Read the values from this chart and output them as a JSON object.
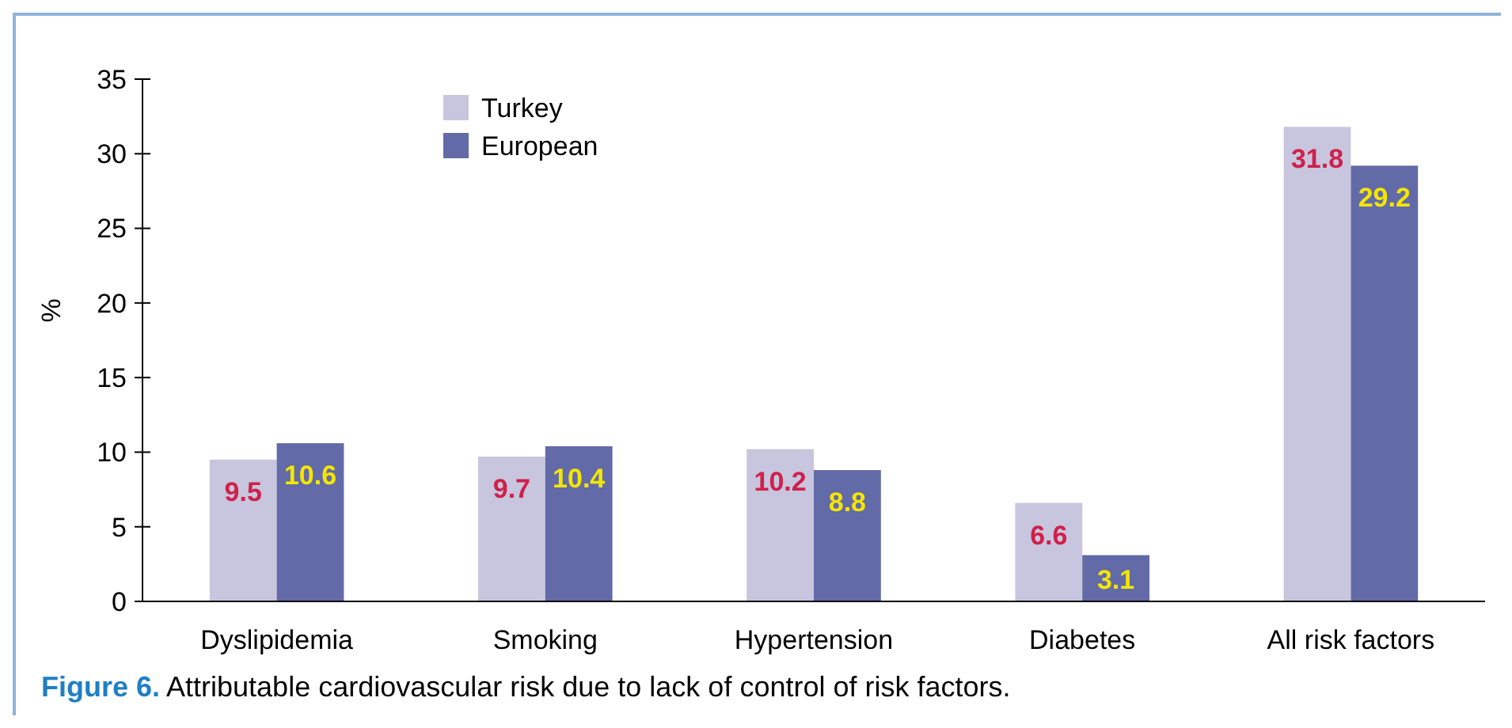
{
  "chart_data": {
    "type": "bar",
    "categories": [
      "Dyslipidemia",
      "Smoking",
      "Hypertension",
      "Diabetes",
      "All risk factors"
    ],
    "series": [
      {
        "name": "Turkey",
        "color": "#c8c5de",
        "values": [
          9.5,
          9.7,
          10.2,
          6.6,
          31.8
        ]
      },
      {
        "name": "European",
        "color": "#626aa8",
        "values": [
          10.6,
          10.4,
          8.8,
          3.1,
          29.2
        ]
      }
    ],
    "ylabel": "%",
    "ylim": [
      0,
      35
    ],
    "yticks": [
      0,
      5,
      10,
      15,
      20,
      25,
      30,
      35
    ],
    "grid": false,
    "legend": "top left",
    "data_labels": true,
    "annotations": [
      "Figure 6.",
      "Attributable cardiovascular risk due to lack of control of risk factors."
    ]
  }
}
